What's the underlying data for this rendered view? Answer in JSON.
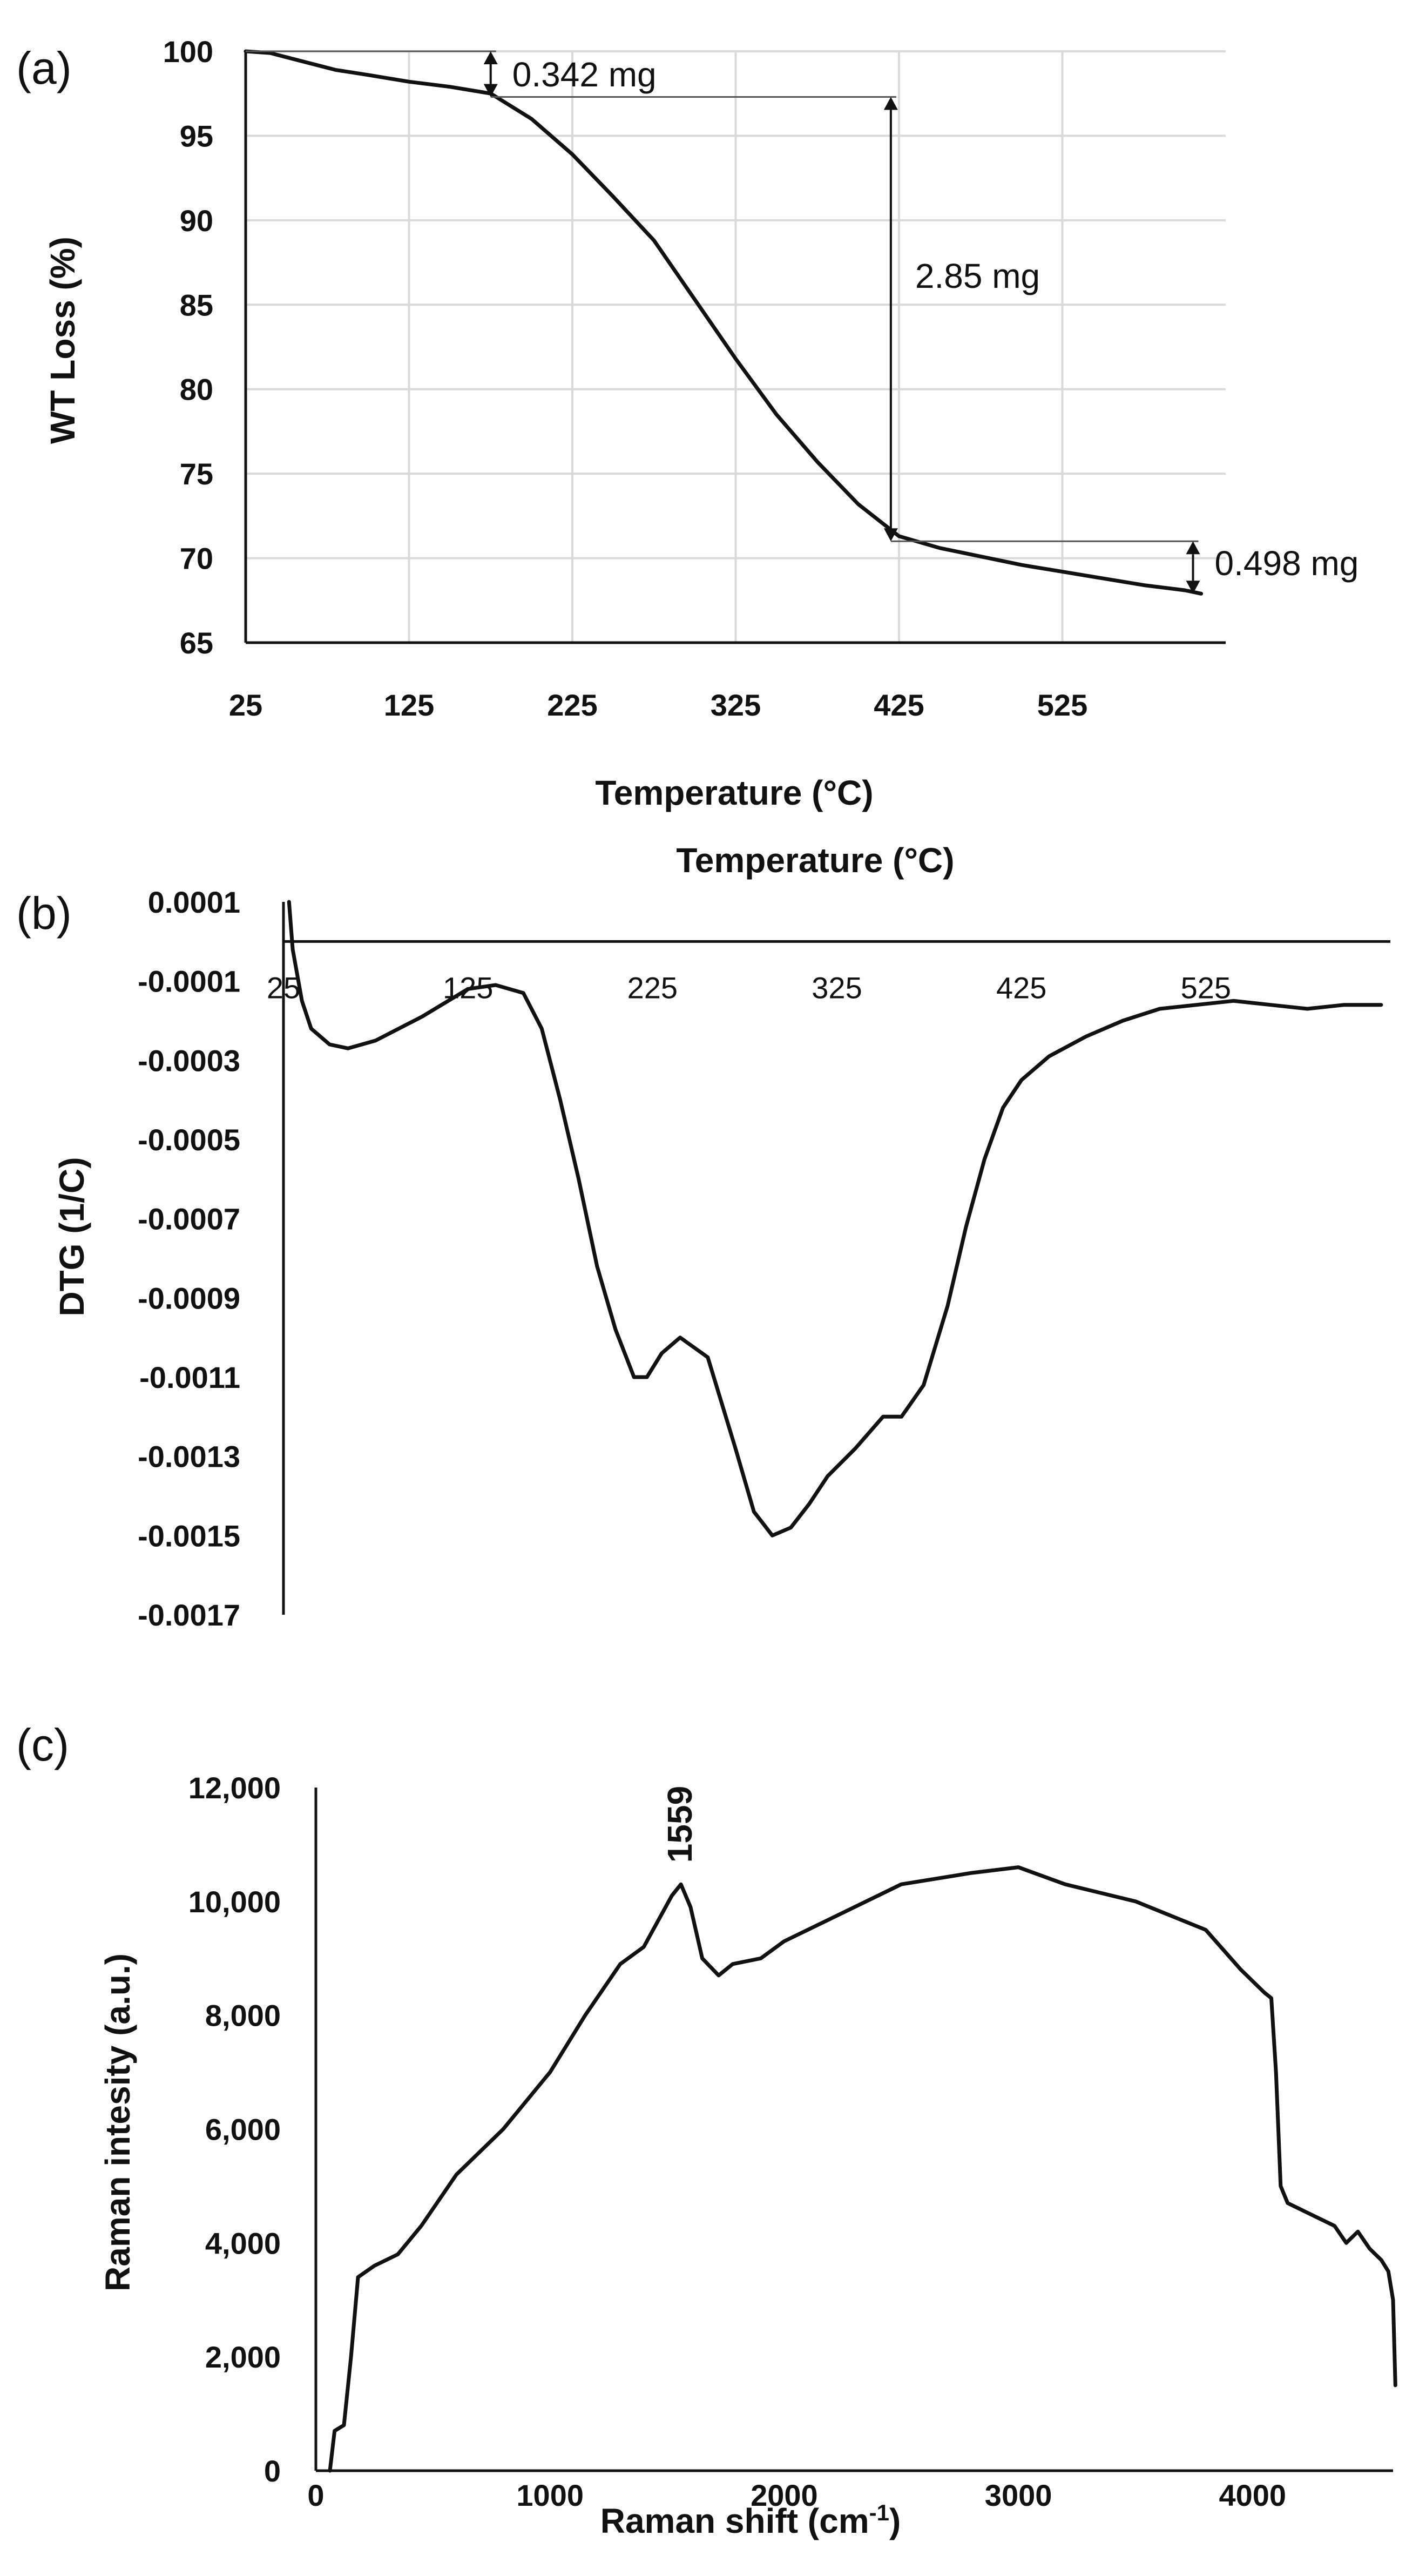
{
  "chart_data": [
    {
      "panel": "(a)",
      "type": "line",
      "xlabel": "Temperature (°C)",
      "ylabel": "WT Loss (%)",
      "xlim": [
        25,
        625
      ],
      "ylim": [
        65,
        100
      ],
      "xticks": [
        25,
        125,
        225,
        325,
        425,
        525
      ],
      "yticks": [
        65,
        70,
        75,
        80,
        85,
        90,
        95,
        100
      ],
      "grid": true,
      "x": [
        25,
        40,
        60,
        80,
        100,
        125,
        150,
        175,
        200,
        225,
        250,
        275,
        300,
        325,
        350,
        375,
        400,
        425,
        450,
        475,
        500,
        525,
        550,
        575,
        600,
        610
      ],
      "y": [
        100,
        99.9,
        99.4,
        98.9,
        98.6,
        98.2,
        97.9,
        97.5,
        96.0,
        93.9,
        91.4,
        88.8,
        85.3,
        81.8,
        78.5,
        75.7,
        73.2,
        71.3,
        70.6,
        70.1,
        69.6,
        69.2,
        68.8,
        68.4,
        68.1,
        67.9
      ],
      "annotations": [
        {
          "label": "0.342 mg",
          "x": 175,
          "y_from": 100,
          "y_to": 97.3
        },
        {
          "label": "2.85 mg",
          "x": 420,
          "y_from": 97.3,
          "y_to": 71.0
        },
        {
          "label": "0.498 mg",
          "x": 605,
          "y_from": 71.0,
          "y_to": 67.9
        }
      ]
    },
    {
      "panel": "(b)",
      "type": "line",
      "title": "Temperature (°C)",
      "ylabel": "DTG (1/C)",
      "xlim": [
        25,
        625
      ],
      "ylim": [
        -0.0017,
        0.0001
      ],
      "xticks": [
        25,
        125,
        225,
        325,
        425,
        525
      ],
      "yticks": [
        "0.0001",
        "-0.0001",
        "-0.0003",
        "-0.0005",
        "-0.0007",
        "-0.0009",
        "-0.0011",
        "-0.0013",
        "-0.0015",
        "-0.0017"
      ],
      "x": [
        28,
        30,
        35,
        40,
        50,
        60,
        75,
        100,
        125,
        140,
        155,
        165,
        175,
        185,
        195,
        205,
        215,
        222,
        230,
        240,
        255,
        270,
        280,
        290,
        300,
        310,
        320,
        335,
        350,
        360,
        372,
        385,
        395,
        405,
        415,
        425,
        440,
        460,
        480,
        500,
        520,
        540,
        560,
        580,
        600,
        620
      ],
      "y": [
        0.0001,
        -2e-05,
        -0.00015,
        -0.00022,
        -0.00026,
        -0.00027,
        -0.00025,
        -0.00019,
        -0.00012,
        -0.00011,
        -0.00013,
        -0.00022,
        -0.0004,
        -0.0006,
        -0.00082,
        -0.00098,
        -0.0011,
        -0.0011,
        -0.00104,
        -0.001,
        -0.00105,
        -0.00128,
        -0.00144,
        -0.0015,
        -0.00148,
        -0.00142,
        -0.00135,
        -0.00128,
        -0.0012,
        -0.0012,
        -0.00112,
        -0.00092,
        -0.00072,
        -0.00055,
        -0.00042,
        -0.00035,
        -0.00029,
        -0.00024,
        -0.0002,
        -0.00017,
        -0.00016,
        -0.00015,
        -0.00016,
        -0.00017,
        -0.00016,
        -0.00016
      ]
    },
    {
      "panel": "(c)",
      "type": "line",
      "xlabel": "Raman shift (cm",
      "xlabel_sup": "-1",
      "xlabel_close": ")",
      "ylabel": "Raman intesity (a.u.)",
      "xlim": [
        0,
        4600
      ],
      "ylim": [
        0,
        12000
      ],
      "xticks": [
        "0",
        "1000",
        "2000",
        "3000",
        "4000"
      ],
      "yticks": [
        "0",
        "2,000",
        "4,000",
        "6,000",
        "8,000",
        "10,000",
        "12,000"
      ],
      "peak_label": "1559",
      "x": [
        60,
        80,
        120,
        150,
        180,
        250,
        350,
        450,
        600,
        800,
        1000,
        1150,
        1300,
        1400,
        1480,
        1520,
        1559,
        1600,
        1650,
        1720,
        1780,
        1900,
        2000,
        2200,
        2500,
        2800,
        3000,
        3200,
        3500,
        3800,
        3950,
        4050,
        4080,
        4100,
        4120,
        4150,
        4250,
        4350,
        4400,
        4450,
        4500,
        4550,
        4580,
        4600,
        4610
      ],
      "y": [
        0,
        700,
        800,
        2000,
        3400,
        3600,
        3800,
        4300,
        5200,
        6000,
        7000,
        8000,
        8900,
        9200,
        9800,
        10100,
        10300,
        9900,
        9000,
        8700,
        8900,
        9000,
        9300,
        9700,
        10300,
        10500,
        10600,
        10300,
        10000,
        9500,
        8800,
        8400,
        8300,
        7000,
        5000,
        4700,
        4500,
        4300,
        4000,
        4200,
        3900,
        3700,
        3500,
        3000,
        1500
      ]
    }
  ]
}
